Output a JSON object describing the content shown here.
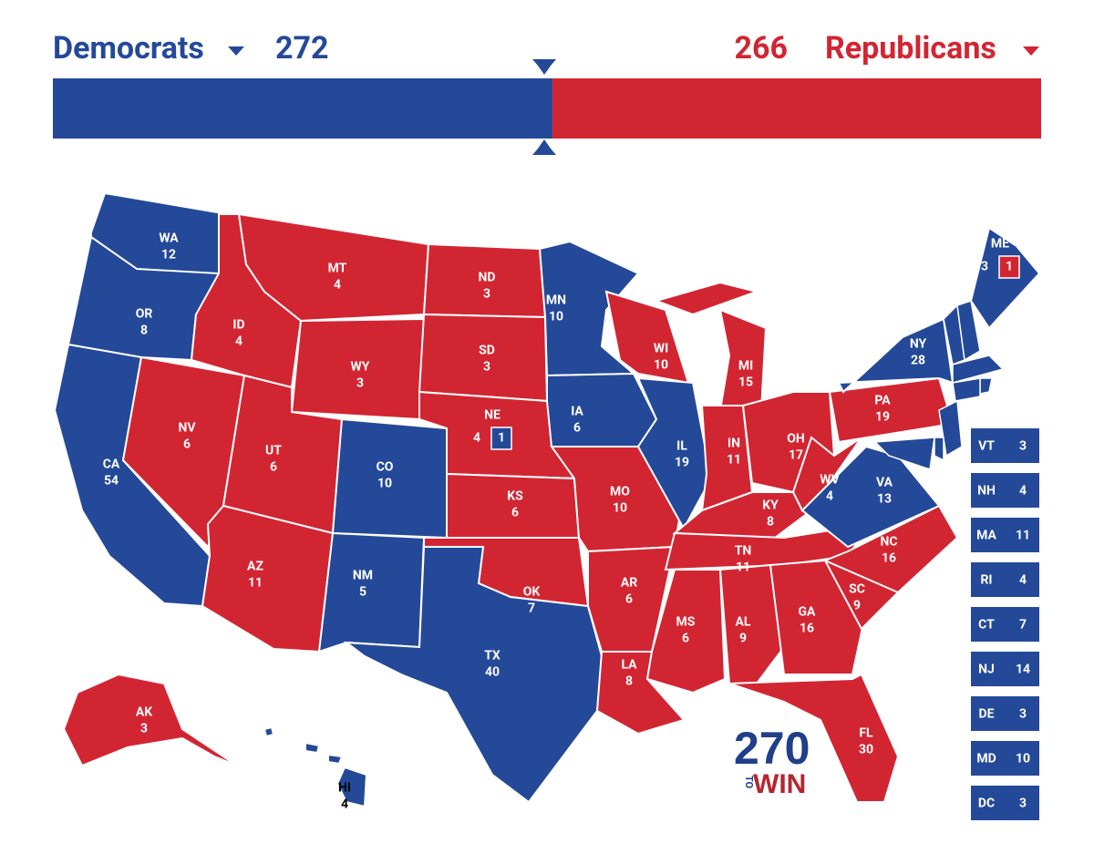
{
  "header": {
    "left_party": "Democrats",
    "left_votes": 272,
    "left_color": "#244999",
    "right_votes": 266,
    "right_party": "Republicans",
    "right_color": "#d22532"
  },
  "states": [
    {
      "abbr": "WA",
      "votes": 12,
      "color": "#244999"
    },
    {
      "abbr": "OR",
      "votes": 8,
      "color": "#244999"
    },
    {
      "abbr": "CA",
      "votes": 54,
      "color": "#244999"
    },
    {
      "abbr": "NV",
      "votes": 6,
      "color": "#d22532"
    },
    {
      "abbr": "ID",
      "votes": 4,
      "color": "#d22532"
    },
    {
      "abbr": "MT",
      "votes": 4,
      "color": "#d22532"
    },
    {
      "abbr": "WY",
      "votes": 3,
      "color": "#d22532"
    },
    {
      "abbr": "UT",
      "votes": 6,
      "color": "#d22532"
    },
    {
      "abbr": "AZ",
      "votes": 11,
      "color": "#d22532"
    },
    {
      "abbr": "CO",
      "votes": 10,
      "color": "#244999"
    },
    {
      "abbr": "NM",
      "votes": 5,
      "color": "#244999"
    },
    {
      "abbr": "ND",
      "votes": 3,
      "color": "#d22532"
    },
    {
      "abbr": "SD",
      "votes": 3,
      "color": "#d22532"
    },
    {
      "abbr": "NE",
      "votes": 4,
      "color": "#d22532",
      "district_votes": 1,
      "district_color": "#244999"
    },
    {
      "abbr": "KS",
      "votes": 6,
      "color": "#d22532"
    },
    {
      "abbr": "OK",
      "votes": 7,
      "color": "#d22532"
    },
    {
      "abbr": "TX",
      "votes": 40,
      "color": "#244999"
    },
    {
      "abbr": "MN",
      "votes": 10,
      "color": "#244999"
    },
    {
      "abbr": "IA",
      "votes": 6,
      "color": "#244999"
    },
    {
      "abbr": "MO",
      "votes": 10,
      "color": "#d22532"
    },
    {
      "abbr": "AR",
      "votes": 6,
      "color": "#d22532"
    },
    {
      "abbr": "LA",
      "votes": 8,
      "color": "#d22532"
    },
    {
      "abbr": "WI",
      "votes": 10,
      "color": "#d22532"
    },
    {
      "abbr": "IL",
      "votes": 19,
      "color": "#244999"
    },
    {
      "abbr": "MI",
      "votes": 15,
      "color": "#d22532"
    },
    {
      "abbr": "IN",
      "votes": 11,
      "color": "#d22532"
    },
    {
      "abbr": "OH",
      "votes": 17,
      "color": "#d22532"
    },
    {
      "abbr": "KY",
      "votes": 8,
      "color": "#d22532"
    },
    {
      "abbr": "TN",
      "votes": 11,
      "color": "#d22532"
    },
    {
      "abbr": "MS",
      "votes": 6,
      "color": "#d22532"
    },
    {
      "abbr": "AL",
      "votes": 9,
      "color": "#d22532"
    },
    {
      "abbr": "GA",
      "votes": 16,
      "color": "#d22532"
    },
    {
      "abbr": "FL",
      "votes": 30,
      "color": "#d22532"
    },
    {
      "abbr": "SC",
      "votes": 9,
      "color": "#d22532"
    },
    {
      "abbr": "NC",
      "votes": 16,
      "color": "#d22532"
    },
    {
      "abbr": "VA",
      "votes": 13,
      "color": "#244999"
    },
    {
      "abbr": "WV",
      "votes": 4,
      "color": "#d22532"
    },
    {
      "abbr": "PA",
      "votes": 19,
      "color": "#d22532"
    },
    {
      "abbr": "NY",
      "votes": 28,
      "color": "#244999"
    },
    {
      "abbr": "ME",
      "votes": 3,
      "color": "#244999",
      "district_votes": 1,
      "district_color": "#d22532"
    },
    {
      "abbr": "AK",
      "votes": 3,
      "color": "#d22532"
    },
    {
      "abbr": "HI",
      "votes": 4,
      "color": "#244999",
      "label_color": "#000000"
    }
  ],
  "sidebar": [
    {
      "abbr": "VT",
      "votes": 3,
      "color": "#244999"
    },
    {
      "abbr": "NH",
      "votes": 4,
      "color": "#244999"
    },
    {
      "abbr": "MA",
      "votes": 11,
      "color": "#244999"
    },
    {
      "abbr": "RI",
      "votes": 4,
      "color": "#244999"
    },
    {
      "abbr": "CT",
      "votes": 7,
      "color": "#244999"
    },
    {
      "abbr": "NJ",
      "votes": 14,
      "color": "#244999"
    },
    {
      "abbr": "DE",
      "votes": 3,
      "color": "#244999"
    },
    {
      "abbr": "MD",
      "votes": 10,
      "color": "#244999"
    },
    {
      "abbr": "DC",
      "votes": 3,
      "color": "#244999"
    }
  ],
  "logo": {
    "number": "270",
    "small": "TO",
    "word": "WIN"
  }
}
